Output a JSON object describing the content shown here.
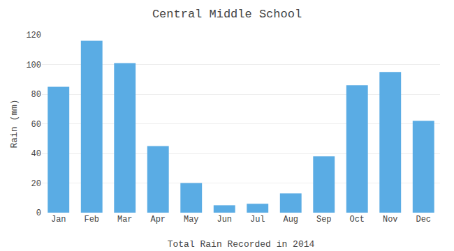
{
  "chart_data": {
    "type": "bar",
    "title": "Central Middle School",
    "xlabel": "Total Rain Recorded in 2014",
    "ylabel": "Rain (mm)",
    "categories": [
      "Jan",
      "Feb",
      "Mar",
      "Apr",
      "May",
      "Jun",
      "Jul",
      "Aug",
      "Sep",
      "Oct",
      "Nov",
      "Dec"
    ],
    "values": [
      85,
      116,
      101,
      45,
      20,
      5,
      6,
      13,
      38,
      86,
      95,
      62
    ],
    "color": "#5aace4",
    "ylim": [
      0,
      120
    ],
    "yticks": [
      0,
      20,
      40,
      60,
      80,
      100,
      120
    ],
    "grid": true
  }
}
